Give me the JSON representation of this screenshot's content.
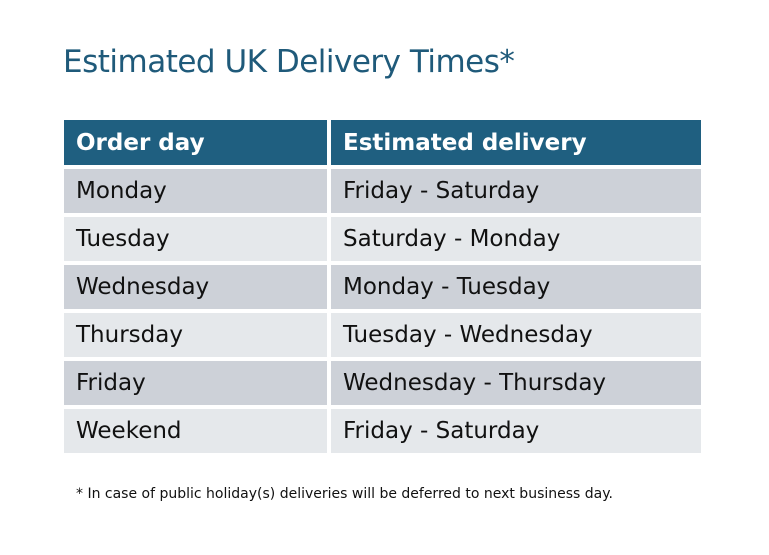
{
  "title": "Estimated UK Delivery Times*",
  "colors": {
    "header": "#1f5f80",
    "title": "#1f5a7a",
    "row_odd": "#cdd1d8",
    "row_even": "#e5e8eb"
  },
  "table": {
    "headers": [
      "Order day",
      "Estimated delivery"
    ],
    "rows": [
      [
        "Monday",
        "Friday - Saturday"
      ],
      [
        "Tuesday",
        "Saturday - Monday"
      ],
      [
        "Wednesday",
        "Monday - Tuesday"
      ],
      [
        "Thursday",
        "Tuesday - Wednesday"
      ],
      [
        "Friday",
        "Wednesday - Thursday"
      ],
      [
        "Weekend",
        "Friday - Saturday"
      ]
    ]
  },
  "footnote": "* In case of public holiday(s) deliveries will be deferred to next business day."
}
